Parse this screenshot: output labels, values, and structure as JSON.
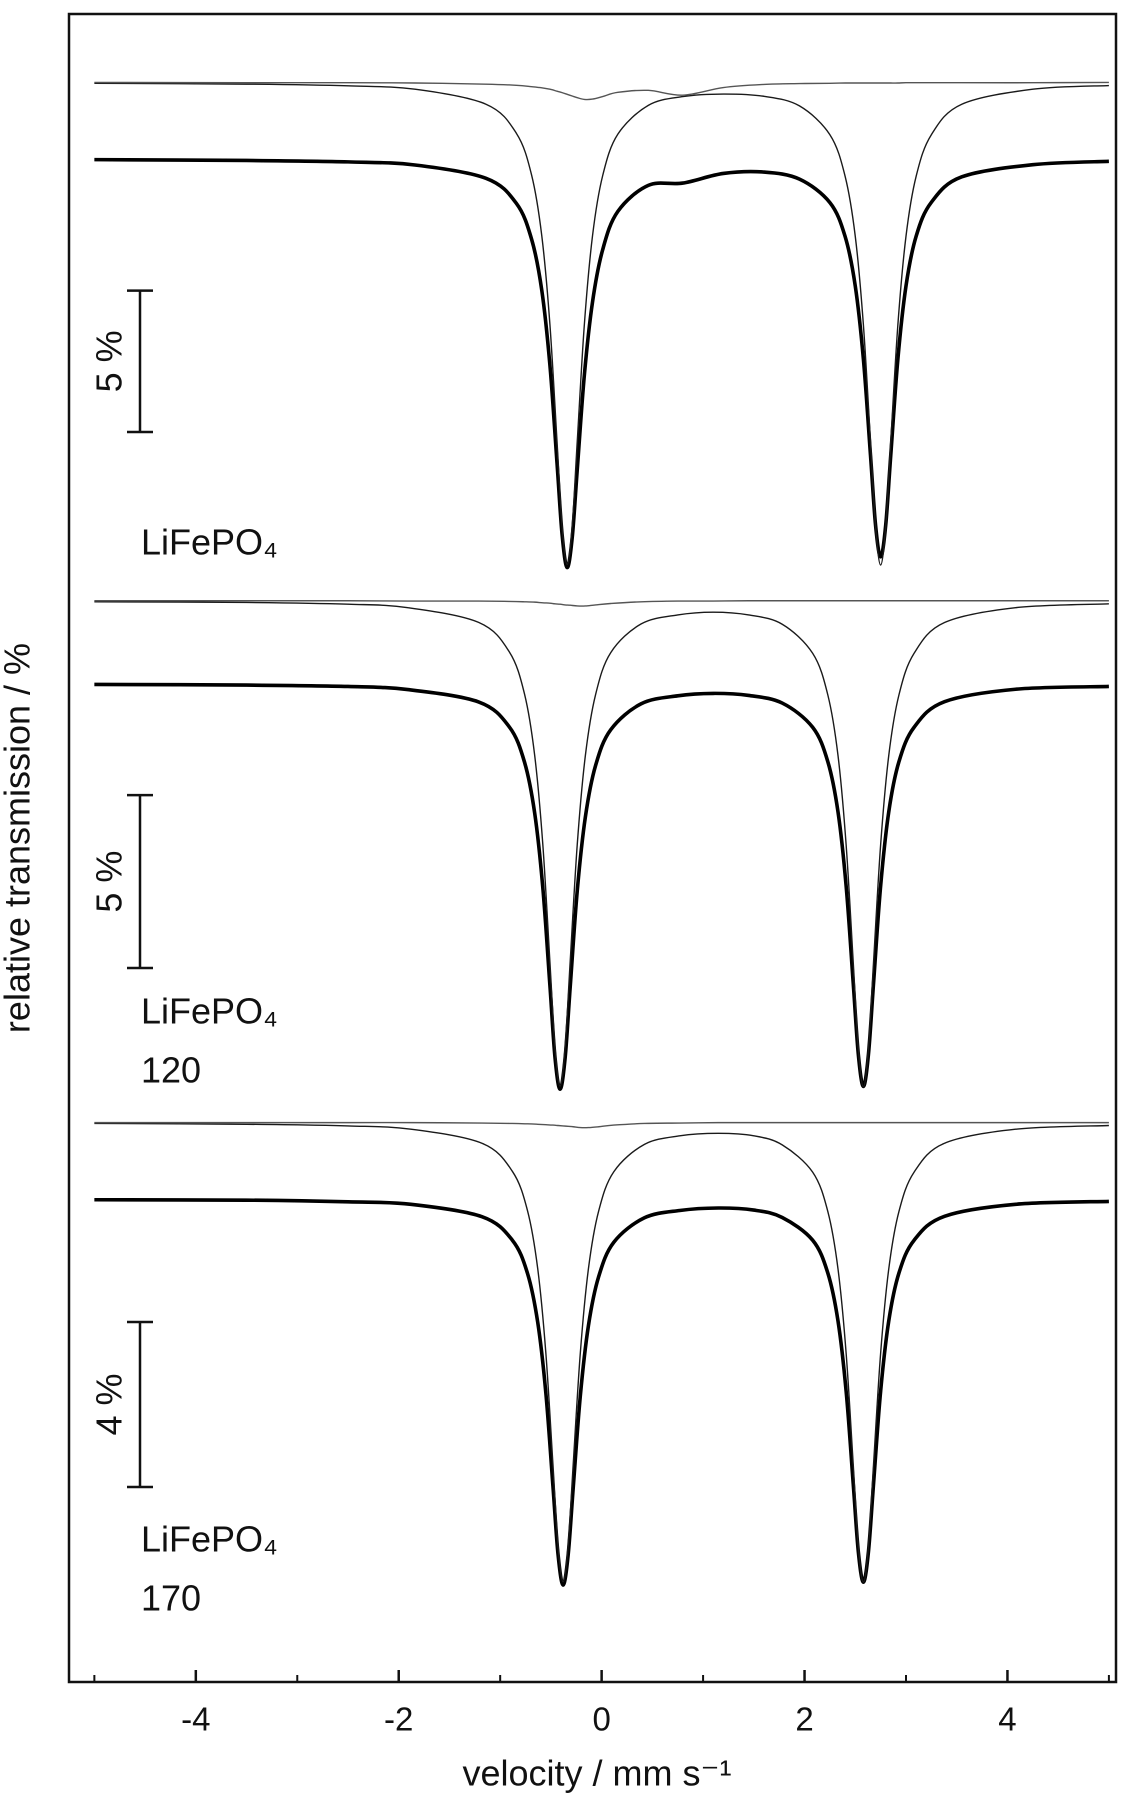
{
  "chart_data": [
    {
      "type": "line",
      "xlim": [
        -5.25,
        5.07
      ],
      "ylim": [
        82.4,
        100.9
      ],
      "label": [
        "LiFePO₄"
      ],
      "scale_bar": {
        "value": 5,
        "label": "5 %"
      },
      "x": [
        -5,
        -3.5,
        -2.5,
        -1.84,
        -1.14,
        -0.84,
        -0.69,
        -0.59,
        -0.51,
        -0.44,
        -0.39,
        -0.34,
        -0.29,
        -0.24,
        -0.17,
        -0.09,
        0.01,
        0.16,
        0.46,
        0.8,
        1.2,
        1.6,
        1.95,
        2.25,
        2.4,
        2.5,
        2.58,
        2.65,
        2.7,
        2.75,
        2.8,
        2.85,
        2.92,
        3.0,
        3.1,
        3.25,
        3.55,
        4.25,
        5
      ],
      "series": [
        {
          "color": "#000000",
          "values": [
            97.27,
            97.24,
            97.19,
            97.08,
            96.61,
            95.72,
            94.45,
            92.65,
            90.01,
            86.55,
            84.02,
            82.84,
            83.9,
            86.32,
            89.66,
            92.23,
            94.08,
            95.44,
            96.36,
            96.44,
            96.78,
            96.83,
            96.58,
            95.75,
            94.55,
            92.8,
            90.22,
            86.82,
            84.34,
            83.22,
            84.34,
            86.82,
            90.22,
            92.8,
            94.56,
            95.76,
            96.66,
            97.09,
            97.21
          ]
        },
        {
          "color": "#1a1a1a",
          "values": [
            99.97,
            99.94,
            99.88,
            99.76,
            99.23,
            98.2,
            96.72,
            94.58,
            91.45,
            87.32,
            84.31,
            82.95,
            84.31,
            87.32,
            91.45,
            94.57,
            96.7,
            98.17,
            99.19,
            99.5,
            99.59,
            99.51,
            99.17,
            98.15,
            96.68,
            94.56,
            91.43,
            87.3,
            84.29,
            82.93,
            84.29,
            87.3,
            91.43,
            94.56,
            96.68,
            98.15,
            99.23,
            99.76,
            99.89
          ]
        },
        {
          "color": "#555555",
          "values": [
            100,
            99.99,
            99.99,
            99.98,
            99.94,
            99.9,
            99.85,
            99.81,
            99.76,
            99.69,
            99.64,
            99.58,
            99.52,
            99.46,
            99.4,
            99.41,
            99.5,
            99.65,
            99.72,
            99.55,
            99.82,
            99.93,
            99.96,
            99.97,
            99.98,
            99.98,
            99.98,
            99.98,
            99.98,
            99.98,
            99.98,
            99.98,
            99.98,
            99.99,
            99.99,
            99.99,
            99.99,
            99.99,
            100
          ]
        }
      ]
    },
    {
      "type": "line",
      "xlim": [
        -5.25,
        5.07
      ],
      "ylim": [
        85.5,
        100.6
      ],
      "ylabel": "relative transmission / %",
      "label": [
        "LiFePO₄",
        "120"
      ],
      "scale_bar": {
        "value": 5,
        "label": "5 %"
      },
      "x": [
        -5,
        -3.5,
        -2.5,
        -1.91,
        -1.21,
        -0.91,
        -0.76,
        -0.66,
        -0.58,
        -0.51,
        -0.46,
        -0.41,
        -0.36,
        -0.31,
        -0.24,
        -0.16,
        -0.06,
        0.09,
        0.39,
        0.75,
        1.1,
        1.45,
        1.78,
        2.08,
        2.23,
        2.33,
        2.41,
        2.48,
        2.53,
        2.58,
        2.63,
        2.68,
        2.75,
        2.83,
        2.93,
        3.08,
        3.38,
        4.08,
        5
      ],
      "series": [
        {
          "color": "#000000",
          "values": [
            97.58,
            97.56,
            97.52,
            97.43,
            97.07,
            96.35,
            95.33,
            93.86,
            91.71,
            88.88,
            86.8,
            85.87,
            86.77,
            88.82,
            91.62,
            93.75,
            95.23,
            96.27,
            97.02,
            97.25,
            97.32,
            97.26,
            97.04,
            96.34,
            95.34,
            93.89,
            91.75,
            88.93,
            86.88,
            85.95,
            86.88,
            88.93,
            91.75,
            93.89,
            95.34,
            96.34,
            97.08,
            97.44,
            97.52
          ]
        },
        {
          "color": "#1a1a1a",
          "values": [
            99.97,
            99.95,
            99.9,
            99.8,
            99.37,
            98.52,
            97.3,
            95.53,
            92.96,
            89.56,
            87.08,
            85.96,
            87.08,
            89.56,
            92.96,
            95.53,
            97.28,
            98.5,
            99.33,
            99.59,
            99.67,
            99.59,
            99.32,
            98.48,
            97.27,
            95.52,
            92.94,
            89.54,
            87.06,
            85.94,
            87.06,
            89.54,
            92.94,
            95.52,
            97.27,
            98.48,
            99.37,
            99.8,
            99.91
          ]
        },
        {
          "color": "#555555",
          "values": [
            100,
            100,
            100,
            99.99,
            99.99,
            99.98,
            99.97,
            99.96,
            99.94,
            99.93,
            99.91,
            99.9,
            99.88,
            99.87,
            99.85,
            99.85,
            99.88,
            99.92,
            99.97,
            99.99,
            99.99,
            100,
            100,
            100,
            100,
            100,
            100,
            100,
            100,
            100,
            100,
            100,
            100,
            100,
            100,
            100,
            100,
            100,
            100
          ]
        }
      ]
    },
    {
      "type": "line",
      "xlim": [
        -5.25,
        5.07
      ],
      "ylim": [
        87.7,
        100.5
      ],
      "xlabel": "velocity / mm s⁻¹",
      "xticks": [
        -4,
        -2,
        0,
        2,
        4
      ],
      "xminorticks": [
        -5,
        -3,
        -1,
        1,
        3,
        5
      ],
      "label": [
        "LiFePO₄",
        "170"
      ],
      "scale_bar": {
        "value": 4,
        "label": "4 %"
      },
      "x": [
        -5,
        -3.5,
        -2.5,
        -1.88,
        -1.18,
        -0.88,
        -0.73,
        -0.63,
        -0.55,
        -0.48,
        -0.43,
        -0.38,
        -0.33,
        -0.28,
        -0.21,
        -0.13,
        -0.03,
        0.12,
        0.42,
        0.77,
        1.15,
        1.5,
        1.78,
        2.08,
        2.23,
        2.33,
        2.41,
        2.48,
        2.53,
        2.58,
        2.63,
        2.68,
        2.75,
        2.83,
        2.93,
        3.08,
        3.38,
        4.08,
        5
      ],
      "series": [
        {
          "color": "#000000",
          "values": [
            98.13,
            98.12,
            98.08,
            98.02,
            97.72,
            97.15,
            96.34,
            95.16,
            93.45,
            91.19,
            89.54,
            88.79,
            89.52,
            91.15,
            93.38,
            95.08,
            96.26,
            97.1,
            97.69,
            97.87,
            97.93,
            97.88,
            97.7,
            97.15,
            96.35,
            95.19,
            93.49,
            91.24,
            89.6,
            88.86,
            89.6,
            91.24,
            93.49,
            95.19,
            96.35,
            97.15,
            97.73,
            98.02,
            98.09
          ]
        },
        {
          "color": "#1a1a1a",
          "values": [
            99.98,
            99.96,
            99.92,
            99.84,
            99.5,
            98.82,
            97.86,
            96.46,
            94.42,
            91.72,
            89.75,
            88.87,
            89.75,
            91.72,
            94.42,
            96.46,
            97.85,
            98.81,
            99.47,
            99.68,
            99.74,
            99.68,
            99.46,
            98.8,
            97.84,
            96.45,
            94.41,
            91.71,
            89.74,
            88.86,
            89.74,
            91.71,
            94.41,
            96.45,
            97.84,
            98.8,
            99.5,
            99.84,
            99.93
          ]
        },
        {
          "color": "#555555",
          "values": [
            100,
            100,
            100,
            100,
            99.99,
            99.98,
            99.97,
            99.96,
            99.95,
            99.94,
            99.93,
            99.92,
            99.91,
            99.9,
            99.88,
            99.88,
            99.9,
            99.94,
            99.98,
            99.99,
            100,
            100,
            100,
            100,
            100,
            100,
            100,
            100,
            100,
            100,
            100,
            100,
            100,
            100,
            100,
            100,
            100,
            100,
            100
          ]
        }
      ]
    }
  ]
}
